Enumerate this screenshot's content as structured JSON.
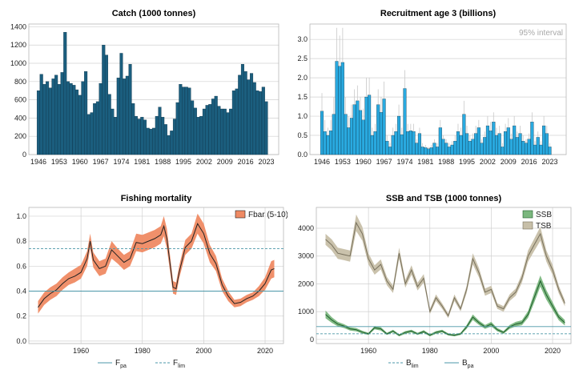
{
  "colors": {
    "catch_bar": "#1b5e7e",
    "recruit_bar": "#29a9df",
    "recruit_error": "#c8c8c8",
    "fbar_band": "#ef8a63",
    "fbar_line": "#222222",
    "ref_line": "#4b97a8",
    "ssb_band": "#7bb77e",
    "ssb_line": "#1e5d2c",
    "tsb_band": "#c7bfa8",
    "tsb_line": "#77705c",
    "grid": "#d0d0d0"
  },
  "chart_data": [
    {
      "type": "bar",
      "title": "Catch (1000 tonnes)",
      "x": [
        1946,
        1947,
        1948,
        1949,
        1950,
        1951,
        1952,
        1953,
        1954,
        1955,
        1956,
        1957,
        1958,
        1959,
        1960,
        1961,
        1962,
        1963,
        1964,
        1965,
        1966,
        1967,
        1968,
        1969,
        1970,
        1971,
        1972,
        1973,
        1974,
        1975,
        1976,
        1977,
        1978,
        1979,
        1980,
        1981,
        1982,
        1983,
        1984,
        1985,
        1986,
        1987,
        1988,
        1989,
        1990,
        1991,
        1992,
        1993,
        1994,
        1995,
        1996,
        1997,
        1998,
        1999,
        2000,
        2001,
        2002,
        2003,
        2004,
        2005,
        2006,
        2007,
        2008,
        2009,
        2010,
        2011,
        2012,
        2013,
        2014,
        2015,
        2016,
        2017,
        2018,
        2019,
        2020,
        2021,
        2022,
        2023
      ],
      "values": [
        700,
        880,
        770,
        800,
        730,
        830,
        870,
        770,
        900,
        1340,
        800,
        780,
        760,
        710,
        650,
        800,
        910,
        440,
        460,
        560,
        580,
        780,
        1200,
        1090,
        660,
        500,
        410,
        840,
        1110,
        830,
        860,
        990,
        560,
        420,
        390,
        410,
        380,
        290,
        280,
        290,
        420,
        520,
        410,
        330,
        210,
        260,
        390,
        570,
        770,
        740,
        740,
        730,
        590,
        510,
        410,
        420,
        500,
        540,
        550,
        610,
        640,
        530,
        500,
        500,
        460,
        500,
        700,
        720,
        870,
        990,
        910,
        820,
        890,
        790,
        700,
        690,
        740,
        580
      ],
      "xticks": [
        "1946",
        "1953",
        "1960",
        "1967",
        "1974",
        "1981",
        "1988",
        "1995",
        "2002",
        "2009",
        "2016",
        "2023"
      ],
      "yticks": [
        "0",
        "200",
        "400",
        "600",
        "800",
        "1000",
        "1200",
        "1400"
      ],
      "ylim": [
        0,
        1430
      ],
      "grid": true
    },
    {
      "type": "bar",
      "title": "Recruitment age 3 (billions)",
      "note": "95% interval",
      "x": [
        1946,
        1947,
        1948,
        1949,
        1950,
        1951,
        1952,
        1953,
        1954,
        1955,
        1956,
        1957,
        1958,
        1959,
        1960,
        1961,
        1962,
        1963,
        1964,
        1965,
        1966,
        1967,
        1968,
        1969,
        1970,
        1971,
        1972,
        1973,
        1974,
        1975,
        1976,
        1977,
        1978,
        1979,
        1980,
        1981,
        1982,
        1983,
        1984,
        1985,
        1986,
        1987,
        1988,
        1989,
        1990,
        1991,
        1992,
        1993,
        1994,
        1995,
        1996,
        1997,
        1998,
        1999,
        2000,
        2001,
        2002,
        2003,
        2004,
        2005,
        2006,
        2007,
        2008,
        2009,
        2010,
        2011,
        2012,
        2013,
        2014,
        2015,
        2016,
        2017,
        2018,
        2019,
        2020,
        2021,
        2022,
        2023
      ],
      "values": [
        1.13,
        0.6,
        0.5,
        0.62,
        1.05,
        2.43,
        2.3,
        2.4,
        1.05,
        0.7,
        0.95,
        1.3,
        1.4,
        1.15,
        0.9,
        1.5,
        1.55,
        0.5,
        0.6,
        1.3,
        1.1,
        1.45,
        0.35,
        0.2,
        0.5,
        0.6,
        1.0,
        0.52,
        1.72,
        0.6,
        0.62,
        0.6,
        0.3,
        0.55,
        0.2,
        0.18,
        0.15,
        0.18,
        0.3,
        0.2,
        0.7,
        0.4,
        0.3,
        0.2,
        0.25,
        0.35,
        0.6,
        0.5,
        1.05,
        0.55,
        0.35,
        0.4,
        0.55,
        0.7,
        0.3,
        0.45,
        0.75,
        0.62,
        0.85,
        0.5,
        0.55,
        0.2,
        0.6,
        0.7,
        0.4,
        0.75,
        0.45,
        0.55,
        0.35,
        0.3,
        0.4,
        0.85,
        0.25,
        0.45,
        0.25,
        0.75,
        0.55,
        0.2
      ],
      "upper": [
        1.6,
        0.9,
        0.7,
        0.9,
        1.5,
        3.3,
        3.1,
        3.3,
        1.5,
        1.0,
        1.3,
        1.7,
        1.8,
        1.5,
        1.2,
        2.0,
        2.0,
        0.7,
        0.8,
        1.7,
        1.5,
        1.9,
        0.5,
        0.3,
        0.7,
        0.8,
        1.3,
        0.7,
        2.2,
        0.8,
        0.8,
        0.8,
        0.4,
        0.7,
        0.3,
        0.25,
        0.2,
        0.25,
        0.4,
        0.3,
        0.9,
        0.5,
        0.4,
        0.3,
        0.35,
        0.5,
        0.8,
        0.7,
        1.4,
        0.75,
        0.5,
        0.55,
        0.75,
        0.9,
        0.4,
        0.6,
        1.0,
        0.85,
        1.1,
        0.7,
        0.75,
        0.3,
        0.8,
        0.95,
        0.55,
        1.0,
        0.6,
        0.75,
        0.5,
        0.4,
        0.55,
        1.1,
        0.35,
        0.6,
        0.35,
        1.0,
        0.75,
        0.3
      ],
      "xticks": [
        "1946",
        "1953",
        "1960",
        "1967",
        "1974",
        "1981",
        "1988",
        "1995",
        "2002",
        "2009",
        "2016",
        "2023"
      ],
      "yticks": [
        "0.0",
        "0.5",
        "1.0",
        "1.5",
        "2.0",
        "2.5",
        "3.0"
      ],
      "ylim": [
        0,
        3.4
      ],
      "grid": true
    },
    {
      "type": "line",
      "title": "Fishing mortality",
      "series": [
        {
          "name": "Fbar (5-10)",
          "x": [
            1946,
            1948,
            1950,
            1952,
            1954,
            1956,
            1958,
            1960,
            1962,
            1963,
            1964,
            1966,
            1968,
            1970,
            1972,
            1974,
            1976,
            1978,
            1980,
            1982,
            1984,
            1986,
            1987,
            1988,
            1990,
            1991,
            1992,
            1994,
            1996,
            1998,
            2000,
            2002,
            2004,
            2006,
            2008,
            2010,
            2012,
            2014,
            2016,
            2018,
            2020,
            2022,
            2023
          ],
          "values": [
            0.27,
            0.34,
            0.38,
            0.41,
            0.46,
            0.5,
            0.52,
            0.55,
            0.66,
            0.8,
            0.65,
            0.58,
            0.6,
            0.73,
            0.68,
            0.63,
            0.66,
            0.79,
            0.78,
            0.8,
            0.82,
            0.85,
            0.92,
            0.82,
            0.43,
            0.42,
            0.55,
            0.75,
            0.8,
            0.94,
            0.86,
            0.7,
            0.62,
            0.45,
            0.36,
            0.3,
            0.31,
            0.34,
            0.36,
            0.4,
            0.46,
            0.57,
            0.58
          ],
          "lower": [
            0.22,
            0.29,
            0.33,
            0.36,
            0.41,
            0.45,
            0.47,
            0.5,
            0.6,
            0.74,
            0.59,
            0.52,
            0.54,
            0.66,
            0.62,
            0.57,
            0.6,
            0.72,
            0.71,
            0.73,
            0.75,
            0.78,
            0.84,
            0.74,
            0.38,
            0.37,
            0.5,
            0.69,
            0.74,
            0.86,
            0.78,
            0.63,
            0.56,
            0.4,
            0.32,
            0.27,
            0.28,
            0.31,
            0.33,
            0.36,
            0.41,
            0.5,
            0.51
          ],
          "upper": [
            0.32,
            0.39,
            0.43,
            0.46,
            0.51,
            0.55,
            0.58,
            0.61,
            0.72,
            0.86,
            0.71,
            0.64,
            0.66,
            0.8,
            0.74,
            0.69,
            0.72,
            0.86,
            0.85,
            0.87,
            0.89,
            0.92,
            1.0,
            0.9,
            0.48,
            0.47,
            0.6,
            0.81,
            0.86,
            1.02,
            0.94,
            0.77,
            0.68,
            0.5,
            0.4,
            0.33,
            0.34,
            0.37,
            0.39,
            0.44,
            0.51,
            0.64,
            0.65
          ]
        }
      ],
      "refs": [
        {
          "name_main": "F",
          "name_sub": "pa",
          "value": 0.4,
          "style": "solid"
        },
        {
          "name_main": "F",
          "name_sub": "lim",
          "value": 0.74,
          "style": "dashed"
        }
      ],
      "xticks": [
        "1960",
        "1980",
        "2000",
        "2020"
      ],
      "yticks": [
        "0.0",
        "0.2",
        "0.4",
        "0.6",
        "0.8",
        "1.0"
      ],
      "xlim": [
        1943,
        2026
      ],
      "ylim": [
        -0.02,
        1.07
      ],
      "legend": "top-right",
      "grid": true
    },
    {
      "type": "line",
      "title": "SSB and TSB (1000 tonnes)",
      "series": [
        {
          "name": "SSB",
          "x": [
            1946,
            1948,
            1950,
            1952,
            1954,
            1956,
            1958,
            1960,
            1962,
            1964,
            1966,
            1968,
            1970,
            1972,
            1974,
            1976,
            1978,
            1980,
            1982,
            1984,
            1986,
            1988,
            1990,
            1992,
            1994,
            1996,
            1998,
            2000,
            2002,
            2004,
            2006,
            2008,
            2010,
            2012,
            2014,
            2016,
            2018,
            2020,
            2022,
            2024
          ],
          "values": [
            900,
            700,
            550,
            480,
            380,
            350,
            260,
            200,
            420,
            380,
            200,
            300,
            150,
            250,
            300,
            200,
            280,
            150,
            250,
            300,
            180,
            150,
            200,
            450,
            800,
            600,
            450,
            550,
            350,
            250,
            450,
            550,
            600,
            900,
            1500,
            2100,
            1600,
            1200,
            800,
            600
          ],
          "lower": [
            760,
            600,
            470,
            410,
            320,
            290,
            210,
            160,
            360,
            320,
            160,
            250,
            110,
            200,
            250,
            160,
            230,
            110,
            200,
            250,
            140,
            110,
            160,
            380,
            700,
            520,
            380,
            470,
            290,
            200,
            380,
            470,
            510,
            780,
            1320,
            1900,
            1430,
            1060,
            690,
            500
          ],
          "upper": [
            1040,
            800,
            630,
            550,
            440,
            410,
            310,
            240,
            480,
            440,
            240,
            350,
            190,
            300,
            350,
            240,
            330,
            190,
            300,
            350,
            220,
            190,
            240,
            520,
            900,
            680,
            520,
            630,
            410,
            300,
            520,
            630,
            690,
            1020,
            1680,
            2300,
            1770,
            1340,
            910,
            700
          ]
        },
        {
          "name": "TSB",
          "x": [
            1946,
            1948,
            1950,
            1952,
            1954,
            1956,
            1958,
            1960,
            1962,
            1964,
            1966,
            1968,
            1970,
            1972,
            1974,
            1976,
            1978,
            1980,
            1982,
            1984,
            1986,
            1988,
            1990,
            1992,
            1994,
            1996,
            1998,
            2000,
            2002,
            2004,
            2006,
            2008,
            2010,
            2012,
            2014,
            2016,
            2018,
            2020,
            2022,
            2024
          ],
          "values": [
            3600,
            3400,
            3100,
            3050,
            3000,
            4200,
            3800,
            2900,
            2500,
            2700,
            2100,
            1800,
            3100,
            2000,
            2500,
            1900,
            2200,
            1000,
            1500,
            1200,
            850,
            1500,
            1100,
            1800,
            2900,
            2400,
            1700,
            1800,
            1200,
            1100,
            1500,
            1700,
            2200,
            3000,
            3400,
            3800,
            3000,
            2500,
            1800,
            1300
          ],
          "lower": [
            3400,
            3200,
            2900,
            2850,
            2800,
            3900,
            3550,
            2700,
            2330,
            2520,
            1950,
            1670,
            2900,
            1860,
            2330,
            1760,
            2050,
            910,
            1380,
            1100,
            770,
            1380,
            1010,
            1670,
            2700,
            2230,
            1570,
            1670,
            1100,
            1000,
            1380,
            1570,
            2040,
            2800,
            3180,
            3550,
            2800,
            2320,
            1660,
            1190
          ],
          "upper": [
            3800,
            3600,
            3300,
            3250,
            3200,
            4500,
            4050,
            3100,
            2670,
            2880,
            2250,
            1930,
            3300,
            2140,
            2670,
            2040,
            2350,
            1090,
            1620,
            1300,
            930,
            1620,
            1190,
            1930,
            3100,
            2570,
            1830,
            1930,
            1300,
            1200,
            1620,
            1830,
            2360,
            3200,
            3620,
            4050,
            3200,
            2680,
            1940,
            1410
          ]
        }
      ],
      "refs": [
        {
          "name_main": "B",
          "name_sub": "lim",
          "value": 200,
          "style": "dashed"
        },
        {
          "name_main": "B",
          "name_sub": "pa",
          "value": 460,
          "style": "solid"
        }
      ],
      "xticks": [
        "1960",
        "1980",
        "2000",
        "2020"
      ],
      "yticks": [
        "0",
        "1000",
        "2000",
        "3000",
        "4000"
      ],
      "xlim": [
        1943,
        2026
      ],
      "ylim": [
        -150,
        4750
      ],
      "legend": "top-right",
      "grid": true
    }
  ]
}
